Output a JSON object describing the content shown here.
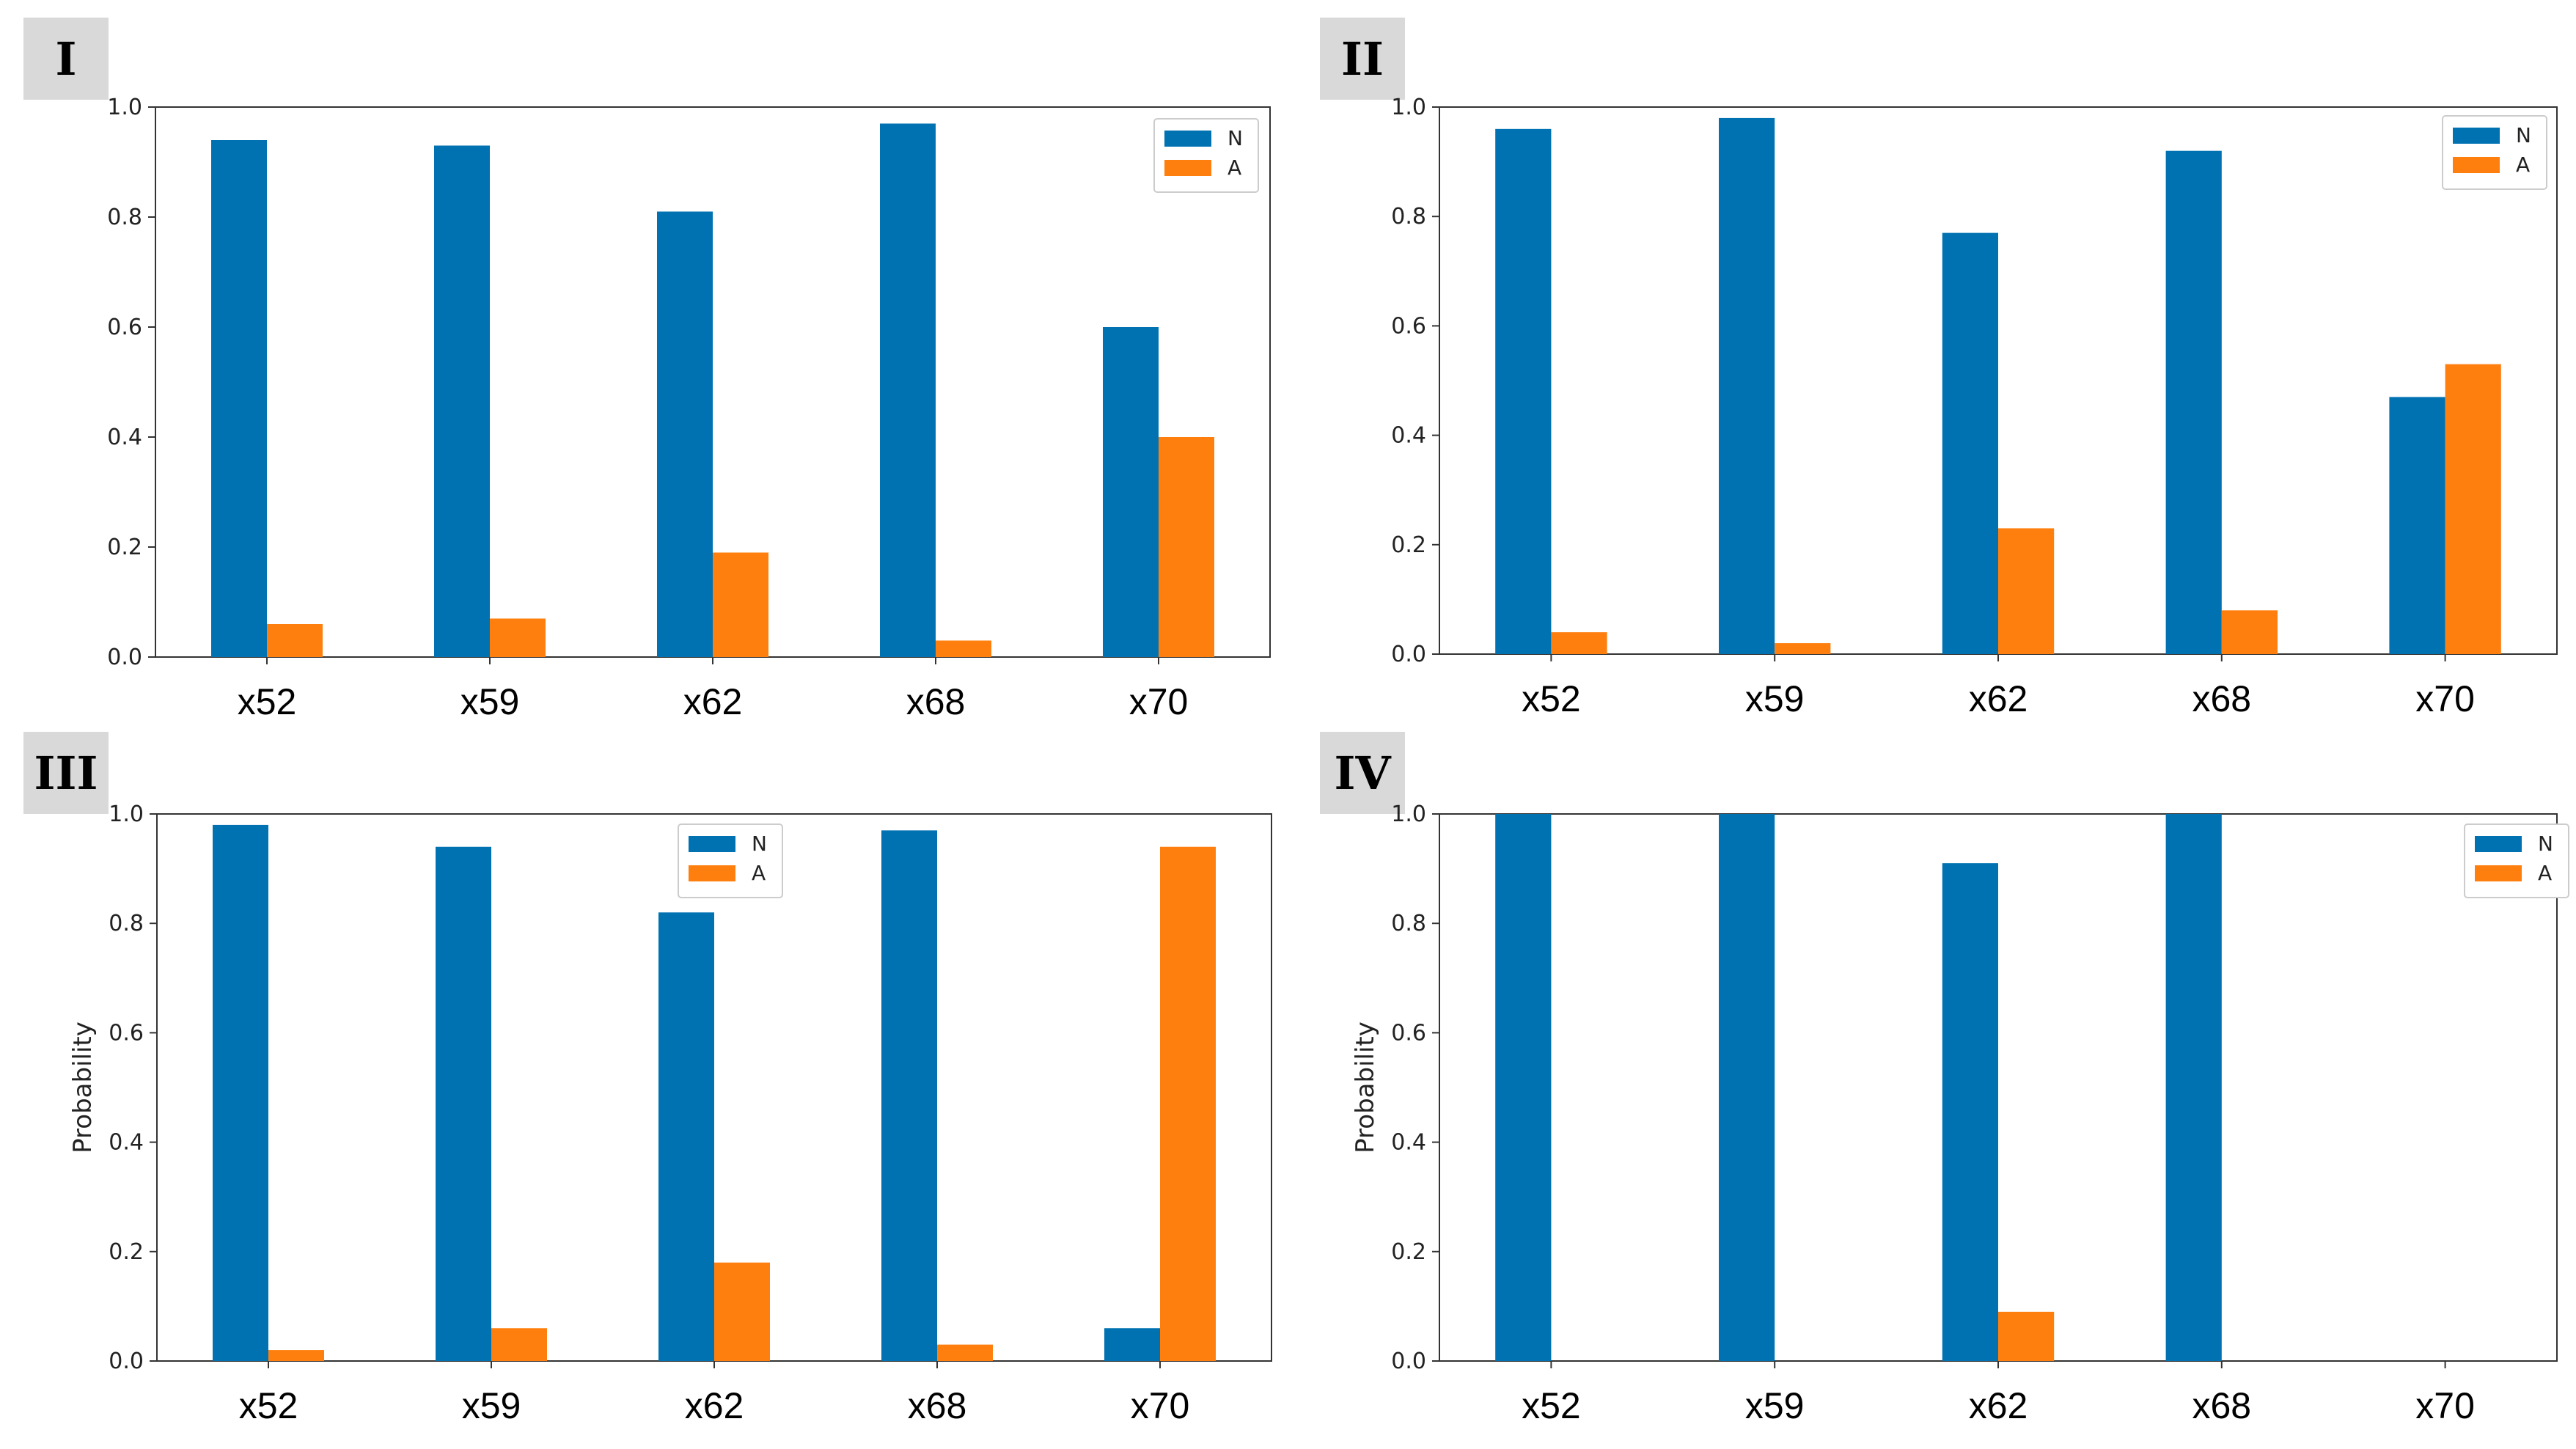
{
  "colors": {
    "N": "#0072b2",
    "A": "#ff7f0e"
  },
  "chart_data": [
    {
      "type": "bar",
      "panel_label": "I",
      "categories": [
        "x52",
        "x59",
        "x62",
        "x68",
        "x70"
      ],
      "series": [
        {
          "name": "N",
          "values": [
            0.94,
            0.93,
            0.81,
            0.97,
            0.6
          ]
        },
        {
          "name": "A",
          "values": [
            0.06,
            0.07,
            0.19,
            0.03,
            0.4
          ]
        }
      ],
      "ylim": [
        0,
        1.0
      ],
      "yticks": [
        "0.0",
        "0.2",
        "0.4",
        "0.6",
        "0.8",
        "1.0"
      ],
      "ylabel": "",
      "legend": "top-right"
    },
    {
      "type": "bar",
      "panel_label": "II",
      "categories": [
        "x52",
        "x59",
        "x62",
        "x68",
        "x70"
      ],
      "series": [
        {
          "name": "N",
          "values": [
            0.96,
            0.98,
            0.77,
            0.92,
            0.47
          ]
        },
        {
          "name": "A",
          "values": [
            0.04,
            0.02,
            0.23,
            0.08,
            0.53
          ]
        }
      ],
      "ylim": [
        0,
        1.0
      ],
      "yticks": [
        "0.0",
        "0.2",
        "0.4",
        "0.6",
        "0.8",
        "1.0"
      ],
      "ylabel": "",
      "legend": "top-right"
    },
    {
      "type": "bar",
      "panel_label": "III",
      "categories": [
        "x52",
        "x59",
        "x62",
        "x68",
        "x70"
      ],
      "series": [
        {
          "name": "N",
          "values": [
            0.98,
            0.94,
            0.82,
            0.97,
            0.06
          ]
        },
        {
          "name": "A",
          "values": [
            0.02,
            0.06,
            0.18,
            0.03,
            0.94
          ]
        }
      ],
      "ylim": [
        0,
        1.0
      ],
      "yticks": [
        "0.0",
        "0.2",
        "0.4",
        "0.6",
        "0.8",
        "1.0"
      ],
      "ylabel": "Probability",
      "legend": "top-center"
    },
    {
      "type": "bar",
      "panel_label": "IV",
      "categories": [
        "x52",
        "x59",
        "x62",
        "x68",
        "x70"
      ],
      "series": [
        {
          "name": "N",
          "values": [
            1.0,
            1.0,
            0.91,
            1.0,
            0.0
          ]
        },
        {
          "name": "A",
          "values": [
            0.0,
            0.0,
            0.09,
            0.0,
            0.0
          ]
        }
      ],
      "ylim": [
        0,
        1.0
      ],
      "yticks": [
        "0.0",
        "0.2",
        "0.4",
        "0.6",
        "0.8",
        "1.0"
      ],
      "ylabel": "Probability",
      "legend": "top-right"
    }
  ]
}
